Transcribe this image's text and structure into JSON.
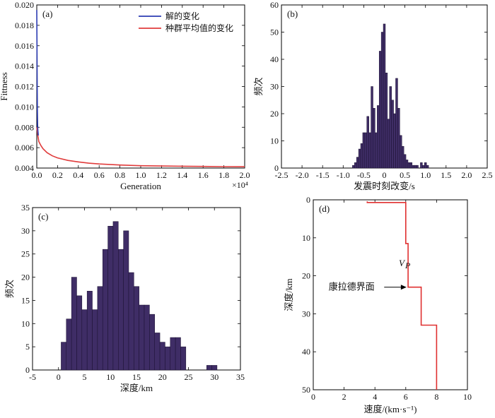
{
  "colors": {
    "hist_bar": "#3f2d66",
    "line_solution": "#2b3bb3",
    "line_population": "#e03c3c",
    "velocity": "#e03030"
  },
  "chart_data": [
    {
      "id": "a",
      "panel_label": "(a)",
      "type": "line",
      "xlabel": "Generation",
      "xmultiplier": "×10⁴",
      "ylabel": "Fittness",
      "xlim": [
        0,
        2.0
      ],
      "ylim": [
        0.004,
        0.02
      ],
      "xticks": [
        "0.0",
        "0.2",
        "0.4",
        "0.6",
        "0.8",
        "1.0",
        "1.2",
        "1.4",
        "1.6",
        "1.8",
        "2.0"
      ],
      "yticks": [
        "0.004",
        "0.006",
        "0.008",
        "0.010",
        "0.012",
        "0.014",
        "0.016",
        "0.018",
        "0.020"
      ],
      "series": [
        {
          "name": "解的变化",
          "color": "#2b3bb3",
          "x": [
            0.0,
            0.002,
            0.004,
            0.006,
            0.008,
            0.01,
            0.015
          ],
          "y": [
            0.0195,
            0.016,
            0.012,
            0.0095,
            0.0082,
            0.0077,
            0.0072
          ]
        },
        {
          "name": "种群平均值的变化",
          "color": "#e03c3c",
          "x": [
            0.0,
            0.01,
            0.02,
            0.04,
            0.06,
            0.1,
            0.15,
            0.2,
            0.3,
            0.4,
            0.5,
            0.6,
            0.8,
            1.0,
            1.2,
            1.4,
            1.6,
            1.8,
            2.0
          ],
          "y": [
            0.008,
            0.0072,
            0.0066,
            0.0062,
            0.0059,
            0.0055,
            0.0052,
            0.005,
            0.00475,
            0.0046,
            0.00448,
            0.0044,
            0.0043,
            0.00423,
            0.0042,
            0.00418,
            0.00416,
            0.00414,
            0.00413
          ]
        }
      ]
    },
    {
      "id": "b",
      "panel_label": "(b)",
      "type": "bar",
      "xlabel": "发震时刻改变/s",
      "ylabel": "频次",
      "xlim": [
        -2.5,
        2.5
      ],
      "ylim": [
        0,
        60
      ],
      "xticks": [
        "-2.5",
        "-2.0",
        "-1.5",
        "-1.0",
        "-0.5",
        "0",
        "0.5",
        "1.0",
        "1.5",
        "2.0",
        "2.5"
      ],
      "yticks": [
        "0",
        "10",
        "20",
        "30",
        "40",
        "50",
        "60"
      ],
      "bin_width": 0.05,
      "bin_centers": [
        -0.75,
        -0.7,
        -0.65,
        -0.6,
        -0.55,
        -0.5,
        -0.45,
        -0.4,
        -0.35,
        -0.3,
        -0.25,
        -0.2,
        -0.15,
        -0.1,
        -0.05,
        0.0,
        0.05,
        0.1,
        0.15,
        0.2,
        0.25,
        0.3,
        0.35,
        0.4,
        0.45,
        0.5,
        0.55,
        0.6,
        0.65,
        0.7,
        0.75,
        0.8,
        0.85,
        0.9,
        0.95,
        1.0,
        1.05
      ],
      "values": [
        1,
        2,
        4,
        7,
        9,
        13,
        13,
        19,
        13,
        30,
        22,
        13,
        23,
        43,
        50,
        53,
        35,
        18,
        30,
        25,
        20,
        33,
        22,
        12,
        8,
        5,
        3,
        2,
        2,
        1,
        1,
        1,
        0,
        2,
        1,
        2,
        1
      ]
    },
    {
      "id": "c",
      "panel_label": "(c)",
      "type": "bar",
      "xlabel": "深度/km",
      "ylabel": "频次",
      "xlim": [
        -5,
        35
      ],
      "ylim": [
        0,
        35
      ],
      "xticks": [
        "-5",
        "0",
        "5",
        "10",
        "15",
        "20",
        "25",
        "30",
        "35"
      ],
      "yticks": [
        "0",
        "5",
        "10",
        "15",
        "20",
        "25",
        "30",
        "35"
      ],
      "bin_width": 1,
      "bin_centers": [
        1,
        2,
        3,
        4,
        5,
        6,
        7,
        8,
        9,
        10,
        11,
        12,
        13,
        14,
        15,
        16,
        17,
        18,
        19,
        20,
        21,
        22,
        23,
        24,
        29,
        30
      ],
      "values": [
        6,
        11,
        20,
        16,
        13,
        17,
        13,
        18,
        26,
        31,
        32,
        26,
        30,
        21,
        18,
        14,
        14,
        12,
        8,
        6,
        5,
        7,
        7,
        5,
        1,
        1
      ]
    },
    {
      "id": "d",
      "panel_label": "(d)",
      "type": "line",
      "xlabel": "速度/(km·s⁻¹)",
      "ylabel": "深度/km",
      "xlim": [
        0,
        10
      ],
      "ylim": [
        0,
        50
      ],
      "y_inverted": true,
      "xticks": [
        "0",
        "2",
        "4",
        "6",
        "8",
        "10"
      ],
      "yticks": [
        "0",
        "10",
        "20",
        "30",
        "40",
        "50"
      ],
      "annotations": {
        "vp": "V",
        "vp_sub": "P",
        "moho": "康拉德界面"
      },
      "series": [
        {
          "name": "Vp",
          "color": "#e03030",
          "x": [
            3.5,
            3.5,
            6.0,
            6.0,
            6.15,
            6.15,
            6.35,
            6.35,
            7.0,
            7.0,
            8.0,
            8.0
          ],
          "y": [
            0.4,
            0.7,
            0.7,
            11.5,
            11.5,
            23.0,
            23.0,
            23.0,
            23.0,
            33.0,
            33.0,
            50.0
          ]
        }
      ]
    }
  ]
}
